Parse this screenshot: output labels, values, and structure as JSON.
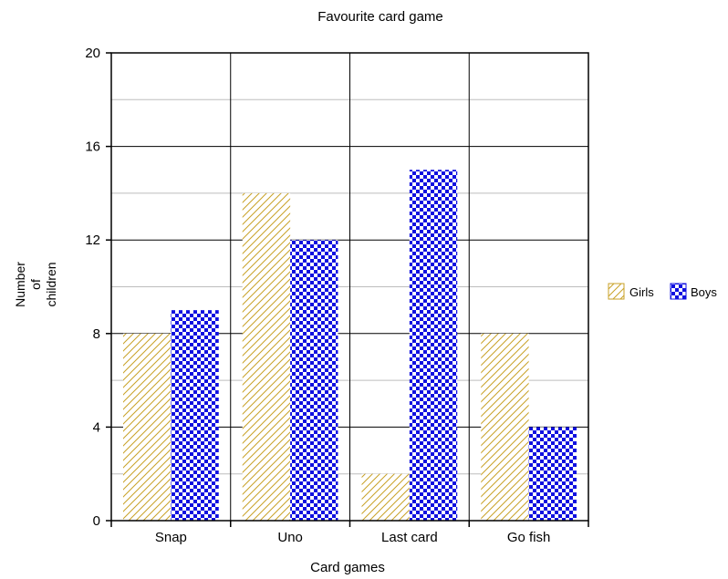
{
  "chart_data": {
    "type": "bar",
    "title": "Favourite card game",
    "xlabel": "Card games",
    "ylabel": [
      "Number",
      "of",
      "children"
    ],
    "categories": [
      "Snap",
      "Uno",
      "Last card",
      "Go fish"
    ],
    "series": [
      {
        "name": "Girls",
        "values": [
          8,
          14,
          2,
          8
        ],
        "color": "#c9a227",
        "pattern": "diagonal-hatch"
      },
      {
        "name": "Boys",
        "values": [
          9,
          12,
          15,
          4
        ],
        "color": "#1010e0",
        "pattern": "checkerboard"
      }
    ],
    "ylim": [
      0,
      20
    ],
    "yticks": [
      "0",
      "4",
      "8",
      "12",
      "16",
      "20"
    ],
    "grid": true,
    "legend_position": "right"
  }
}
